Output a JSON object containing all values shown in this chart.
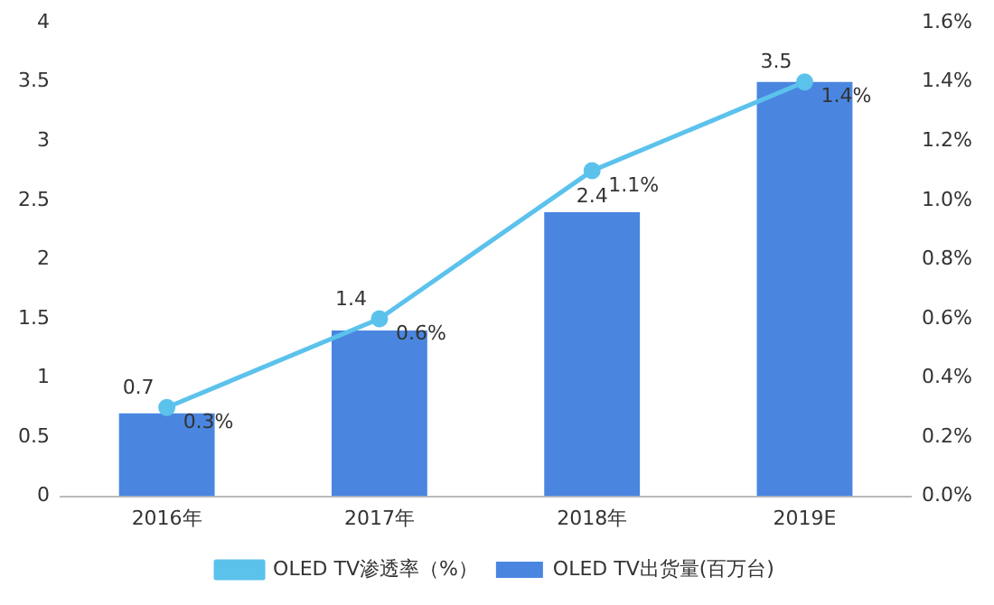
{
  "chart_data": {
    "type": "bar",
    "categories": [
      "2016年",
      "2017年",
      "2018年",
      "2019E"
    ],
    "series": [
      {
        "name": "OLED TV出货量(百万台)",
        "color": "#4a86e0",
        "values": [
          0.7,
          1.4,
          2.4,
          3.5
        ],
        "value_labels": [
          "0.7",
          "1.4",
          "2.4",
          "3.5"
        ]
      },
      {
        "name": "OLED TV渗透率（%）",
        "type": "line",
        "axis": "y2",
        "color": "#5bc2ec",
        "values": [
          0.3,
          0.6,
          1.1,
          1.4
        ],
        "value_labels": [
          "0.3%",
          "0.6%",
          "1.1%",
          "1.4%"
        ]
      }
    ],
    "ylim": [
      0,
      4
    ],
    "yticks": [
      0,
      0.5,
      1,
      1.5,
      2,
      2.5,
      3,
      3.5,
      4
    ],
    "y2lim": [
      0,
      1.6
    ],
    "y2ticks": [
      {
        "value": 0,
        "label": "0.0%"
      },
      {
        "value": 0.2,
        "label": "0.2%"
      },
      {
        "value": 0.4,
        "label": "0.4%"
      },
      {
        "value": 0.6,
        "label": "0.6%"
      },
      {
        "value": 0.8,
        "label": "0.8%"
      },
      {
        "value": 1,
        "label": "1.0%"
      },
      {
        "value": 1.2,
        "label": "1.2%"
      },
      {
        "value": 1.4,
        "label": "1.4%"
      },
      {
        "value": 1.6,
        "label": "1.6%"
      }
    ],
    "grid": false,
    "legend": "bottom",
    "marker": "circle"
  }
}
